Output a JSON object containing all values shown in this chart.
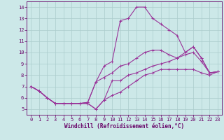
{
  "xlabel": "Windchill (Refroidissement éolien,°C)",
  "bg_color": "#cce8e8",
  "line_color": "#993399",
  "grid_color": "#aacccc",
  "axis_color": "#660066",
  "text_color": "#660066",
  "xlim": [
    -0.5,
    23.5
  ],
  "ylim": [
    4.5,
    14.5
  ],
  "xticks": [
    0,
    1,
    2,
    3,
    4,
    5,
    6,
    7,
    8,
    9,
    10,
    11,
    12,
    13,
    14,
    15,
    16,
    17,
    18,
    19,
    20,
    21,
    22,
    23
  ],
  "yticks": [
    5,
    6,
    7,
    8,
    9,
    10,
    11,
    12,
    13,
    14
  ],
  "line1_x": [
    0,
    1,
    2,
    3,
    4,
    5,
    6,
    7,
    8,
    9,
    10,
    11,
    12,
    13,
    14,
    15,
    16,
    17,
    18,
    19,
    20,
    21,
    22,
    23
  ],
  "line1_y": [
    7.0,
    6.6,
    6.0,
    5.5,
    5.5,
    5.5,
    5.5,
    5.5,
    5.0,
    5.8,
    6.2,
    6.5,
    7.0,
    7.5,
    8.0,
    8.2,
    8.5,
    8.5,
    8.5,
    8.5,
    8.5,
    8.2,
    8.0,
    8.3
  ],
  "line2_x": [
    0,
    1,
    2,
    3,
    4,
    5,
    6,
    7,
    8,
    9,
    10,
    11,
    12,
    13,
    14,
    15,
    16,
    17,
    18,
    19,
    20,
    21,
    22,
    23
  ],
  "line2_y": [
    7.0,
    6.6,
    6.0,
    5.5,
    5.5,
    5.5,
    5.5,
    5.5,
    5.0,
    5.8,
    7.5,
    7.5,
    8.0,
    8.2,
    8.5,
    8.8,
    9.0,
    9.2,
    9.5,
    9.8,
    10.0,
    9.2,
    8.2,
    8.3
  ],
  "line3_x": [
    0,
    1,
    2,
    3,
    4,
    5,
    6,
    7,
    8,
    9,
    10,
    11,
    12,
    13,
    14,
    15,
    16,
    17,
    18,
    19,
    20,
    21,
    22,
    23
  ],
  "line3_y": [
    7.0,
    6.6,
    6.0,
    5.5,
    5.5,
    5.5,
    5.5,
    5.6,
    7.4,
    7.8,
    8.2,
    8.8,
    9.0,
    9.5,
    10.0,
    10.2,
    10.2,
    9.8,
    9.5,
    10.0,
    10.5,
    9.5,
    8.2,
    8.3
  ],
  "line4_x": [
    0,
    1,
    2,
    3,
    4,
    5,
    6,
    7,
    8,
    9,
    10,
    11,
    12,
    13,
    14,
    15,
    16,
    17,
    18,
    19,
    20,
    21,
    22,
    23
  ],
  "line4_y": [
    7.0,
    6.6,
    6.0,
    5.5,
    5.5,
    5.5,
    5.5,
    5.6,
    7.4,
    8.8,
    9.2,
    12.8,
    13.0,
    14.0,
    14.0,
    13.0,
    12.5,
    12.0,
    11.5,
    10.0,
    10.5,
    9.5,
    8.2,
    8.3
  ]
}
